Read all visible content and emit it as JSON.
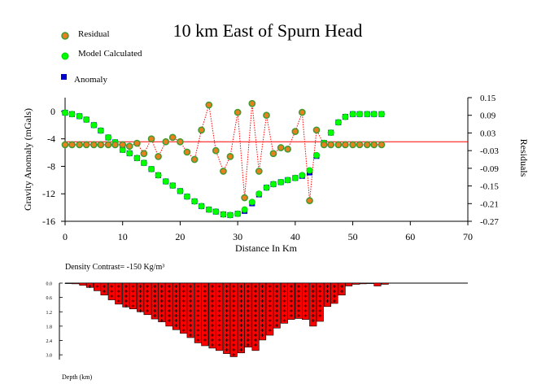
{
  "chart_data": [
    {
      "type": "scatter",
      "title": "10 km East of Spurn Head",
      "xlabel": "Distance In Km",
      "ylabel": "Gravity Anomaly (mGals)",
      "y2label": "Residuals",
      "xlim": [
        0,
        70
      ],
      "ylim": [
        -16,
        2
      ],
      "y2lim": [
        -0.27,
        0.15
      ],
      "xticks": [
        0,
        10,
        20,
        30,
        40,
        50,
        60,
        70
      ],
      "yticks": [
        0,
        -4,
        -8,
        -12,
        -16
      ],
      "y2ticks": [
        "0.15",
        "0.09",
        "0.03",
        "-0.03",
        "-0.09",
        "-0.15",
        "-0.21",
        "-0.27"
      ],
      "residual_zero_line": 0.0,
      "grid": false,
      "legend_position": "top-left",
      "colors": {
        "residual_fill": "#e8801e",
        "residual_edge": "#3f9a30",
        "residual_line": "#ff0000",
        "model": "#00ff00",
        "anomaly": "#0000cc",
        "zero_line": "#ff0000"
      },
      "series": [
        {
          "name": "Residual",
          "axis": "right",
          "x": [
            0,
            1.2,
            2.5,
            3.7,
            5,
            6.2,
            7.5,
            8.7,
            10,
            11.2,
            12.5,
            13.7,
            15,
            16.2,
            17.5,
            18.7,
            20,
            21.2,
            22.5,
            23.7,
            25,
            26.2,
            27.5,
            28.7,
            30,
            31.2,
            32.5,
            33.7,
            35,
            36.2,
            37.5,
            38.7,
            40,
            41.2,
            42.5,
            43.7,
            45,
            46.2,
            47.5,
            48.7,
            50,
            51.2,
            52.5,
            53.7,
            55
          ],
          "y": [
            -0.01,
            -0.01,
            -0.01,
            -0.01,
            -0.01,
            -0.01,
            -0.01,
            -0.01,
            -0.01,
            -0.015,
            -0.005,
            -0.04,
            0.01,
            -0.05,
            0.0,
            0.015,
            0.0,
            -0.035,
            -0.06,
            0.04,
            0.125,
            -0.03,
            -0.1,
            -0.05,
            0.1,
            -0.19,
            0.13,
            -0.1,
            0.09,
            -0.04,
            -0.02,
            -0.025,
            0.035,
            0.1,
            -0.2,
            0.04,
            -0.01,
            -0.01,
            -0.01,
            -0.01,
            -0.01,
            -0.01,
            -0.01,
            -0.01,
            -0.01
          ]
        },
        {
          "name": "Model Calculated",
          "axis": "left",
          "x": [
            0,
            1.2,
            2.5,
            3.7,
            5,
            6.2,
            7.5,
            8.7,
            10,
            11.2,
            12.5,
            13.7,
            15,
            16.2,
            17.5,
            18.7,
            20,
            21.2,
            22.5,
            23.7,
            25,
            26.2,
            27.5,
            28.7,
            30,
            31.2,
            32.5,
            33.7,
            35,
            36.2,
            37.5,
            38.7,
            40,
            41.2,
            42.5,
            43.7,
            45,
            46.2,
            47.5,
            48.7,
            50,
            51.2,
            52.5,
            53.7,
            55
          ],
          "y": [
            -0.2,
            -0.4,
            -0.7,
            -1.2,
            -2.0,
            -2.8,
            -3.8,
            -4.5,
            -5.6,
            -6.1,
            -6.8,
            -7.5,
            -8.4,
            -9.3,
            -10.2,
            -10.8,
            -11.6,
            -12.4,
            -13.1,
            -13.8,
            -14.3,
            -14.6,
            -15.0,
            -15.1,
            -14.9,
            -14.3,
            -13.2,
            -12.0,
            -11.1,
            -10.6,
            -10.3,
            -10.0,
            -9.7,
            -9.3,
            -8.6,
            -6.4,
            -4.6,
            -3.1,
            -1.6,
            -0.8,
            -0.4,
            -0.4,
            -0.4,
            -0.4,
            -0.4
          ]
        },
        {
          "name": "Anomaly",
          "axis": "left",
          "x": [
            0,
            1.2,
            2.5,
            3.7,
            5,
            6.2,
            7.5,
            8.7,
            10,
            11.2,
            12.5,
            13.7,
            15,
            16.2,
            17.5,
            18.7,
            20,
            21.2,
            22.5,
            23.7,
            25,
            26.2,
            27.5,
            28.7,
            30,
            31.2,
            32.5,
            33.7,
            35,
            36.2,
            37.5,
            38.7,
            40,
            41.2,
            42.5,
            43.7,
            45,
            46.2,
            47.5,
            48.7,
            50,
            51.2,
            52.5,
            53.7,
            55
          ],
          "y": [
            -0.2,
            -0.4,
            -0.7,
            -1.2,
            -2.0,
            -2.8,
            -3.8,
            -4.5,
            -5.6,
            -6.1,
            -6.8,
            -7.5,
            -8.4,
            -9.3,
            -10.2,
            -10.8,
            -11.6,
            -12.4,
            -13.1,
            -13.8,
            -14.3,
            -14.6,
            -15.0,
            -15.1,
            -14.9,
            -14.5,
            -13.4,
            -12.1,
            -11.1,
            -10.6,
            -10.3,
            -10.0,
            -9.7,
            -9.4,
            -8.9,
            -6.5,
            -4.6,
            -3.1,
            -1.6,
            -0.8,
            -0.4,
            -0.4,
            -0.4,
            -0.4,
            -0.4
          ]
        }
      ]
    },
    {
      "type": "bar",
      "annotation": "Density Contrast=  -150 Kg/m³",
      "xlabel": "",
      "ylabel": "Depth (km)",
      "xlim": [
        0,
        70
      ],
      "ylim": [
        0,
        3.2
      ],
      "y_inverted": true,
      "yticks": [
        "0.0",
        "0.6",
        "1.2",
        "1.8",
        "2.4",
        "3.0"
      ],
      "colors": {
        "fill": "#ff0000",
        "pattern": "#000000",
        "edge": "#000000"
      },
      "x": [
        0,
        1.2,
        2.5,
        3.7,
        5,
        6.2,
        7.5,
        8.7,
        10,
        11.2,
        12.5,
        13.7,
        15,
        16.2,
        17.5,
        18.7,
        20,
        21.2,
        22.5,
        23.7,
        25,
        26.2,
        27.5,
        28.7,
        30,
        31.2,
        32.5,
        33.7,
        35,
        36.2,
        37.5,
        38.7,
        40,
        41.2,
        42.5,
        43.7,
        45,
        46.2,
        47.5,
        48.7,
        50,
        51.2,
        52.5,
        53.7,
        55
      ],
      "values": [
        0.02,
        0.03,
        0.09,
        0.18,
        0.32,
        0.5,
        0.7,
        0.88,
        1.0,
        1.08,
        1.2,
        1.32,
        1.5,
        1.62,
        1.8,
        1.95,
        2.1,
        2.28,
        2.5,
        2.62,
        2.72,
        2.82,
        2.95,
        3.08,
        2.92,
        2.68,
        2.82,
        2.38,
        2.18,
        1.88,
        1.68,
        1.52,
        1.48,
        1.52,
        1.8,
        1.6,
        0.98,
        0.85,
        0.5,
        0.12,
        0.05,
        0.03,
        0.02,
        0.12,
        0.05
      ]
    }
  ],
  "legend": {
    "residual": "Residual",
    "model": "Model Calculated",
    "anomaly": "Anomaly"
  }
}
